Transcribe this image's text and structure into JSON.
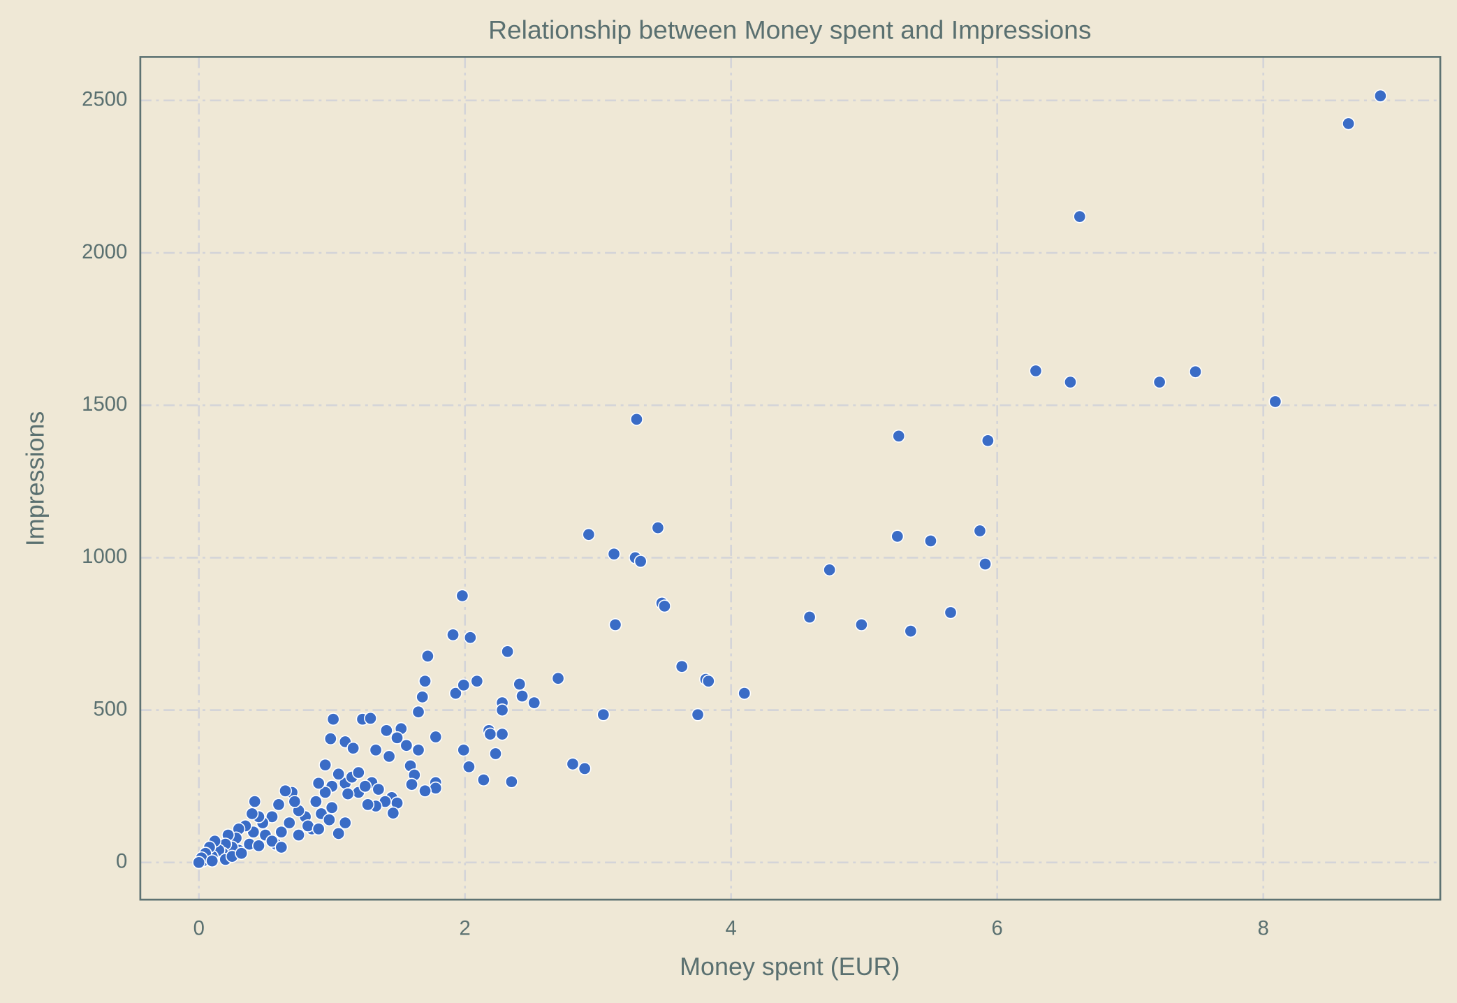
{
  "chart_data": {
    "type": "scatter",
    "title": "Relationship between Money spent and Impressions",
    "xlabel": "Money spent (EUR)",
    "ylabel": "Impressions",
    "color": "#3a6cc6",
    "grid": true,
    "xlim": [
      -0.44,
      9.33
    ],
    "ylim": [
      -122,
      2643
    ],
    "xticks": [
      0,
      2,
      4,
      6,
      8
    ],
    "yticks": [
      0,
      500,
      1000,
      1500,
      2000,
      2500
    ],
    "x": [
      8.88,
      8.64,
      6.62,
      6.29,
      6.55,
      7.22,
      7.49,
      8.09,
      3.29,
      5.26,
      5.93,
      2.93,
      3.45,
      5.25,
      5.5,
      5.87,
      3.12,
      3.28,
      3.32,
      4.74,
      5.91,
      1.98,
      3.48,
      3.5,
      4.59,
      5.65,
      3.13,
      4.98,
      5.35,
      1.72,
      1.91,
      2.04,
      2.32,
      2.7,
      3.63,
      3.81,
      3.83,
      4.1,
      1.7,
      1.68,
      1.93,
      2.09,
      1.99,
      2.41,
      2.43,
      2.52,
      2.28,
      2.28,
      1.65,
      3.04,
      3.75,
      1.01,
      1.23,
      1.29,
      1.52,
      1.41,
      2.18,
      2.19,
      2.28,
      1.49,
      1.78,
      1.56,
      0.99,
      1.1,
      1.16,
      1.33,
      1.65,
      1.99,
      2.23,
      1.43,
      1.59,
      2.81,
      2.9,
      2.03,
      0.95,
      1.62,
      2.14,
      2.35,
      1.78,
      1.6,
      1.78,
      1.7,
      1.45,
      1.49,
      1.46,
      1.3,
      1.35,
      1.4,
      1.33,
      1.27,
      1.2,
      1.25,
      1.1,
      1.05,
      1.15,
      1.2,
      1.0,
      0.95,
      0.9,
      0.88,
      0.92,
      0.98,
      1.05,
      1.1,
      1.0,
      0.85,
      0.8,
      0.75,
      0.7,
      0.65,
      0.72,
      0.68,
      0.6,
      0.62,
      0.58,
      0.55,
      0.5,
      0.48,
      0.45,
      0.42,
      0.4,
      0.41,
      0.38,
      0.35,
      0.3,
      0.28,
      0.3,
      0.25,
      0.22,
      0.2,
      0.18,
      0.15,
      0.12,
      0.1,
      0.08,
      0.06,
      0.05,
      0.03,
      0.02,
      0.0,
      0.1,
      0.2,
      0.25,
      0.32,
      0.45,
      0.55,
      0.62,
      0.75,
      0.82,
      0.9,
      1.12
    ],
    "values": [
      2515,
      2424,
      2119,
      1613,
      1576,
      1576,
      1610,
      1512,
      1454,
      1399,
      1384,
      1076,
      1098,
      1070,
      1055,
      1088,
      1012,
      1000,
      988,
      960,
      979,
      875,
      851,
      841,
      805,
      820,
      780,
      780,
      759,
      677,
      747,
      738,
      692,
      604,
      643,
      601,
      595,
      555,
      595,
      543,
      555,
      595,
      582,
      585,
      546,
      524,
      524,
      500,
      494,
      485,
      485,
      470,
      470,
      473,
      439,
      433,
      433,
      421,
      421,
      409,
      412,
      384,
      406,
      396,
      375,
      369,
      369,
      369,
      357,
      348,
      317,
      323,
      308,
      314,
      320,
      287,
      271,
      265,
      262,
      256,
      244,
      235,
      213,
      195,
      162,
      262,
      240,
      200,
      185,
      190,
      230,
      250,
      260,
      290,
      280,
      295,
      250,
      230,
      260,
      200,
      160,
      140,
      95,
      130,
      180,
      110,
      150,
      170,
      230,
      235,
      200,
      130,
      190,
      100,
      60,
      150,
      90,
      130,
      150,
      200,
      160,
      100,
      60,
      120,
      110,
      80,
      40,
      50,
      90,
      60,
      30,
      40,
      70,
      20,
      50,
      10,
      30,
      5,
      15,
      0,
      5,
      10,
      20,
      30,
      55,
      70,
      50,
      90,
      120,
      110,
      225
    ]
  }
}
